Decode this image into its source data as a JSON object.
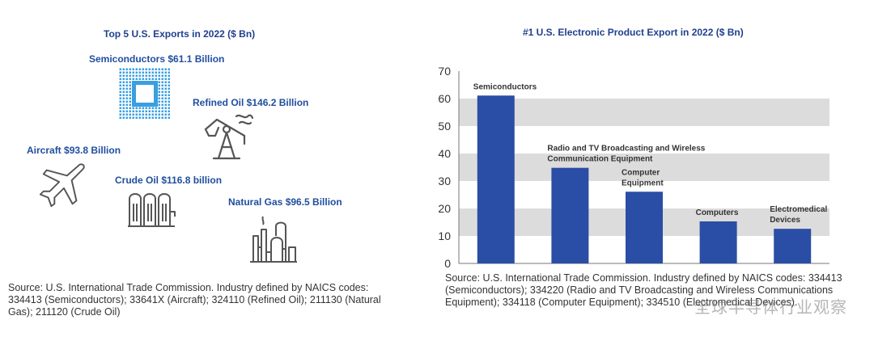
{
  "left_panel": {
    "title": "Top 5 U.S. Exports in 2022 ($ Bn)",
    "exports": [
      {
        "label": "Semiconductors $61.1 Billion",
        "icon": "semiconductor-chip-icon"
      },
      {
        "label": "Refined Oil $146.2 Billion",
        "icon": "oil-pump-icon"
      },
      {
        "label": "Aircraft $93.8 Billion",
        "icon": "airplane-icon"
      },
      {
        "label": "Crude Oil $116.8 billion",
        "icon": "oil-tanks-icon"
      },
      {
        "label": "Natural Gas $96.5 Billion",
        "icon": "refinery-icon"
      }
    ],
    "source": "Source: U.S. International Trade Commission. Industry defined by NAICS codes: 334413 (Semiconductors); 33641X (Aircraft); 324110 (Refined Oil); 211130 (Natural Gas); 211120 (Crude Oil)"
  },
  "right_panel": {
    "source": "Source: U.S. International Trade Commission. Industry defined by NAICS codes: 334413 (Semiconductors); 334220 (Radio and TV Broadcasting and Wireless Communications Equipment); 334118 (Computer Equipment); 334510 (Electromedical Devices).",
    "watermark": "全球半导体行业观察"
  },
  "colors": {
    "title": "#1f3f8f",
    "label": "#1f4e9e",
    "bar": "#2a4ea5",
    "band": "#dcdcdc",
    "icon_blue": "#3a9fe0",
    "icon_gray": "#555555"
  },
  "chart_data": {
    "type": "bar",
    "title": "#1 U.S. Electronic Product Export in 2022 ($ Bn)",
    "categories": [
      [
        "Semiconductors"
      ],
      [
        "Radio and TV Broadcasting and Wireless",
        "Communication Equipment"
      ],
      [
        "Computer",
        "Equipment"
      ],
      [
        "Computers"
      ],
      [
        "Electromedical",
        "Devices"
      ]
    ],
    "values": [
      61.1,
      34.8,
      26.1,
      15.3,
      12.6
    ],
    "ylim": [
      0,
      70
    ],
    "yticks": [
      0,
      10,
      20,
      30,
      40,
      50,
      60,
      70
    ],
    "xlabel": "",
    "ylabel": "",
    "grid": "alternating horizontal bands"
  }
}
